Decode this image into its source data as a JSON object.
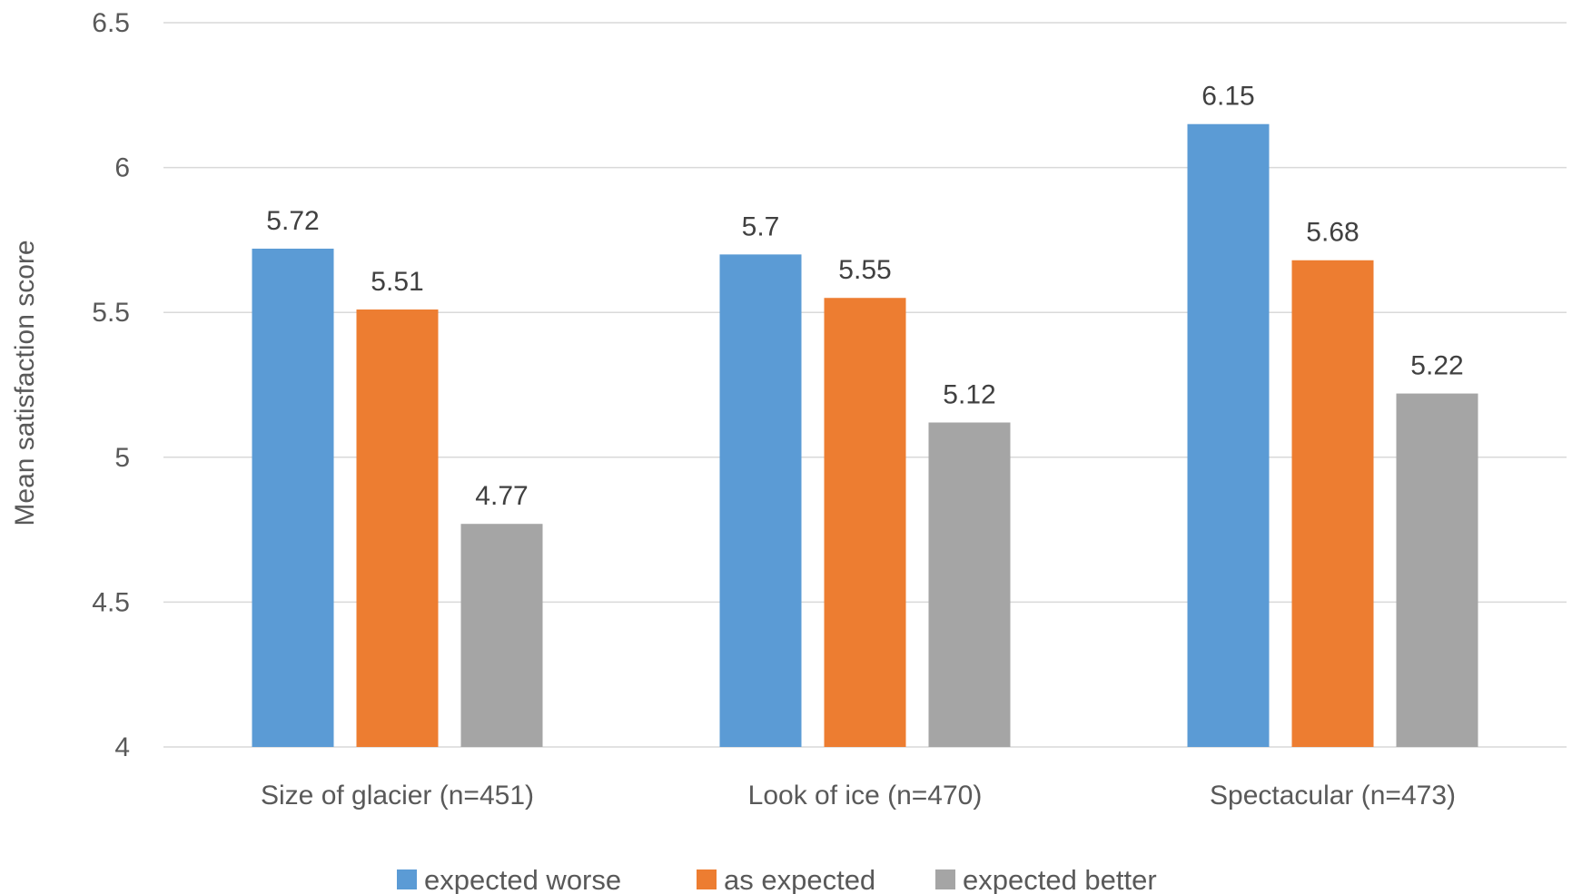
{
  "chart_data": {
    "type": "bar",
    "title": "",
    "xlabel": "",
    "ylabel": "Mean satisfaction score",
    "categories": [
      "Size of glacier (n=451)",
      "Look of ice (n=470)",
      "Spectacular (n=473)"
    ],
    "series": [
      {
        "name": "expected worse",
        "color": "#5b9bd5",
        "values": [
          5.72,
          5.7,
          6.15
        ]
      },
      {
        "name": "as expected",
        "color": "#ed7d31",
        "values": [
          5.51,
          5.55,
          5.68
        ]
      },
      {
        "name": "expected better",
        "color": "#a5a5a5",
        "values": [
          4.77,
          5.12,
          5.22
        ]
      }
    ],
    "ylim": [
      4,
      6.5
    ],
    "yticks": [
      "4",
      "4.5",
      "5",
      "5.5",
      "6",
      "6.5"
    ],
    "grid": true,
    "legend": "bottom",
    "data_labels": true
  }
}
